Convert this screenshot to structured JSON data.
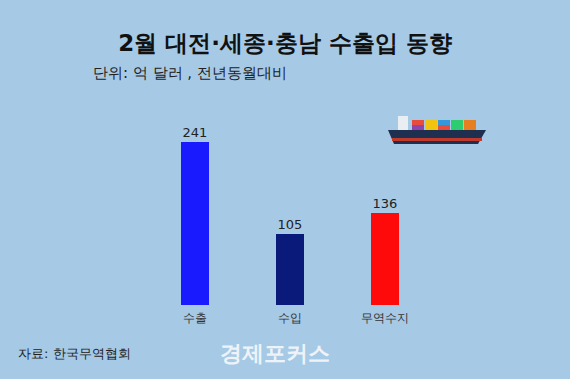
{
  "chart_data": {
    "type": "bar",
    "title": "2월 대전·세종·충남 수출입 동향",
    "subtitle": "단위: 억 달러 , 전년동월대비",
    "categories": [
      "수출",
      "수입",
      "무역수지"
    ],
    "values": [
      241,
      105,
      136
    ],
    "colors": [
      "#1a1aff",
      "#0a1a7a",
      "#ff0a0a"
    ],
    "data_labels": true,
    "tick_labels": "x",
    "grid": false,
    "source": "자료: 한국무역협회",
    "logo": "경제포커스"
  }
}
